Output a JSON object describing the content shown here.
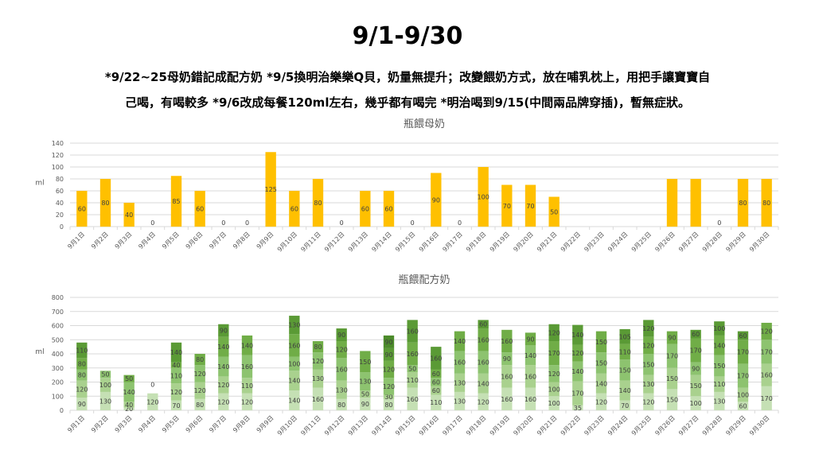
{
  "title": "9/1-9/30",
  "notes": {
    "line1": "*9/22~25母奶錯記成配方奶 *9/5換明治樂樂Q貝，奶量無提升；改變餵奶方式，放在哺乳枕上，用把手讓寶寶自",
    "line2": "己喝，有喝較多 *9/6改成每餐120ml左右，幾乎都有喝完 *明治喝到9/15(中間兩品牌穿插)，暫無症狀。"
  },
  "colors": {
    "breast": "#FFC000",
    "formula_shades": [
      "#E2EFD9",
      "#C5E0B4",
      "#A9D18E",
      "#8DC36F",
      "#70AD47",
      "#5A9A35",
      "#4C8B2B",
      "#3E7A22"
    ],
    "grid": "#D9D9D9",
    "axis_text": "#595959"
  },
  "chart_data": [
    {
      "type": "bar",
      "title": "瓶餵母奶",
      "ylabel": "ml",
      "ylim": [
        0,
        140
      ],
      "yticks": [
        0,
        20,
        40,
        60,
        80,
        100,
        120,
        140
      ],
      "categories": [
        "9月1日",
        "9月2日",
        "9月3日",
        "9月4日",
        "9月5日",
        "9月6日",
        "9月7日",
        "9月8日",
        "9月9日",
        "9月10日",
        "9月11日",
        "9月12日",
        "9月13日",
        "9月14日",
        "9月15日",
        "9月16日",
        "9月17日",
        "9月18日",
        "9月19日",
        "9月20日",
        "9月21日",
        "9月22日",
        "9月23日",
        "9月24日",
        "9月25日",
        "9月26日",
        "9月27日",
        "9月28日",
        "9月29日",
        "9月30日"
      ],
      "values": [
        60,
        80,
        40,
        0,
        85,
        60,
        0,
        0,
        125,
        60,
        80,
        0,
        60,
        60,
        0,
        90,
        0,
        100,
        70,
        70,
        50,
        null,
        null,
        null,
        null,
        80,
        80,
        0,
        80,
        80
      ],
      "labels": [
        "60",
        "80",
        "40",
        "0",
        "85",
        "60",
        "0",
        "0",
        "125",
        "60",
        "80",
        "0",
        "60",
        "60",
        "0",
        "90",
        "0",
        "100",
        "70",
        "70",
        "50",
        "",
        "",
        "",
        "",
        "",
        "",
        "0",
        "80",
        "80"
      ],
      "grid": true
    },
    {
      "type": "bar",
      "stacked": true,
      "title": "瓶餵配方奶",
      "ylabel": "ml",
      "ylim": [
        0,
        800
      ],
      "yticks": [
        0,
        100,
        200,
        300,
        400,
        500,
        600,
        700,
        800
      ],
      "categories": [
        "9月1日",
        "9月2日",
        "9月3日",
        "9月4日",
        "9月5日",
        "9月6日",
        "9月7日",
        "9月8日",
        "9月9日",
        "9月10日",
        "9月11日",
        "9月12日",
        "9月13日",
        "9月14日",
        "9月15日",
        "9月16日",
        "9月17日",
        "9月18日",
        "9月19日",
        "9月20日",
        "9月21日",
        "9月22日",
        "9月23日",
        "9月24日",
        "9月25日",
        "9月26日",
        "9月27日",
        "9月28日",
        "9月29日",
        "9月30日"
      ],
      "stacks": [
        [
          90,
          120,
          80,
          80,
          110
        ],
        [
          130,
          100,
          50
        ],
        [
          20,
          40,
          140,
          50
        ],
        [
          120,
          0
        ],
        [
          70,
          120,
          110,
          40,
          140
        ],
        [
          80,
          120,
          120,
          80
        ],
        [
          120,
          120,
          140,
          140,
          90
        ],
        [
          120,
          110,
          160,
          140
        ],
        [],
        [
          140,
          140,
          100,
          160,
          130
        ],
        [
          160,
          130,
          120,
          80
        ],
        [
          80,
          130,
          160,
          120,
          90
        ],
        [
          90,
          50,
          130,
          150
        ],
        [
          80,
          30,
          120,
          120,
          90,
          90
        ],
        [
          160,
          110,
          50,
          160,
          160
        ],
        [
          110,
          60,
          60,
          60,
          160
        ],
        [
          130,
          130,
          160,
          140
        ],
        [
          120,
          140,
          160,
          160,
          60
        ],
        [
          160,
          160,
          90,
          160
        ],
        [
          160,
          160,
          140,
          90
        ],
        [
          100,
          100,
          120,
          170,
          120
        ],
        [
          35,
          170,
          140,
          120,
          140
        ],
        [
          120,
          140,
          150,
          150
        ],
        [
          70,
          140,
          150,
          110,
          105
        ],
        [
          120,
          130,
          150,
          120,
          120
        ],
        [
          150,
          150,
          170,
          90
        ],
        [
          100,
          150,
          90,
          170,
          60
        ],
        [
          130,
          110,
          150,
          140,
          100
        ],
        [
          60,
          100,
          170,
          170,
          60
        ],
        [
          170,
          160,
          170,
          120
        ]
      ],
      "grid": true
    }
  ]
}
